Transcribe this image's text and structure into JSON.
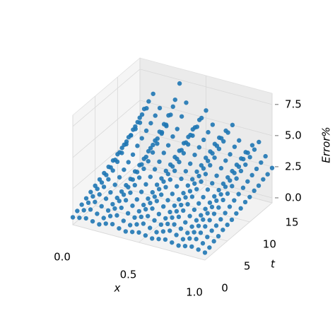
{
  "chart_data": {
    "type": "scatter3d",
    "xlabel": "x",
    "ylabel": "t",
    "zlabel": "Error%",
    "color": "#1f77b4",
    "grid": true,
    "xlim": [
      0,
      1
    ],
    "ylim": [
      0,
      15
    ],
    "zlim": [
      -0.4,
      8.4
    ],
    "xticks": [
      {
        "value": 0,
        "label": "0.0"
      },
      {
        "value": 0.5,
        "label": "0.5"
      },
      {
        "value": 1,
        "label": "1.0"
      }
    ],
    "yticks": [
      0,
      5,
      10,
      15
    ],
    "zticks": [
      {
        "value": 0,
        "label": "0.0"
      },
      {
        "value": 2.5,
        "label": "2.5"
      },
      {
        "value": 5,
        "label": "5.0"
      },
      {
        "value": 7.5,
        "label": "7.5"
      }
    ],
    "x": [
      0,
      0.05,
      0.1,
      0.15,
      0.2,
      0.25,
      0.3,
      0.35,
      0.4,
      0.45,
      0.5,
      0.55,
      0.6,
      0.65,
      0.7,
      0.75,
      0.8,
      0.85,
      0.9,
      0.95,
      1
    ],
    "t": [
      0,
      1,
      2,
      3,
      4,
      5,
      6,
      7,
      8,
      9,
      10,
      11,
      12,
      13,
      14,
      15
    ],
    "values": [
      [
        0.2,
        0.3,
        0.4,
        0.3,
        0.2,
        0.4,
        0.5,
        0.3,
        0.2,
        0.3,
        0.4,
        0.3,
        0.2,
        0.3,
        0.4,
        0.3,
        0.2,
        0.3,
        0.4,
        0.3,
        0.2
      ],
      [
        0.4,
        0.6,
        0.8,
        0.6,
        0.4,
        0.7,
        0.9,
        0.6,
        0.4,
        0.6,
        0.8,
        0.6,
        0.4,
        0.6,
        0.8,
        0.6,
        0.4,
        0.6,
        0.7,
        0.5,
        0.3
      ],
      [
        0.6,
        0.9,
        1.1,
        0.9,
        0.7,
        1.0,
        1.2,
        0.9,
        0.7,
        0.9,
        1.1,
        0.9,
        0.7,
        0.9,
        1.0,
        0.8,
        0.6,
        0.8,
        0.9,
        0.7,
        0.5
      ],
      [
        0.8,
        1.1,
        1.4,
        1.2,
        0.9,
        1.3,
        1.5,
        1.2,
        0.9,
        1.2,
        1.4,
        1.1,
        0.9,
        1.1,
        1.3,
        1.0,
        0.8,
        1.0,
        1.1,
        0.9,
        0.6
      ],
      [
        1.0,
        1.4,
        1.7,
        1.4,
        1.1,
        1.5,
        1.8,
        1.4,
        1.1,
        1.4,
        1.7,
        1.4,
        1.1,
        1.3,
        1.5,
        1.2,
        1.0,
        1.2,
        1.3,
        1.0,
        0.8
      ],
      [
        1.2,
        1.6,
        2.0,
        1.7,
        1.3,
        1.8,
        2.1,
        1.7,
        1.3,
        1.6,
        1.9,
        1.6,
        1.3,
        1.5,
        1.7,
        1.4,
        1.1,
        1.4,
        1.5,
        1.2,
        0.9
      ],
      [
        1.4,
        1.9,
        2.4,
        2.0,
        1.5,
        2.1,
        2.4,
        2.0,
        1.5,
        1.9,
        2.2,
        1.8,
        1.5,
        1.8,
        2.0,
        1.6,
        1.3,
        1.6,
        1.7,
        1.4,
        1.0
      ],
      [
        1.6,
        2.2,
        2.8,
        2.3,
        1.7,
        2.4,
        2.8,
        2.3,
        1.8,
        2.2,
        2.5,
        2.1,
        1.7,
        2.0,
        2.3,
        1.8,
        1.5,
        1.8,
        2.0,
        1.6,
        1.2
      ],
      [
        1.8,
        2.5,
        3.2,
        2.6,
        2.0,
        2.7,
        3.1,
        2.6,
        2.0,
        2.5,
        2.9,
        2.4,
        2.0,
        2.3,
        2.6,
        2.1,
        1.7,
        2.0,
        2.2,
        1.8,
        1.3
      ],
      [
        2.0,
        2.8,
        3.6,
        2.9,
        2.2,
        3.0,
        3.5,
        2.9,
        2.3,
        2.8,
        3.3,
        2.7,
        2.2,
        2.6,
        2.9,
        2.3,
        1.9,
        2.3,
        2.5,
        2.0,
        1.5
      ],
      [
        2.2,
        3.1,
        4.0,
        3.3,
        2.4,
        3.4,
        3.9,
        3.3,
        2.5,
        3.1,
        3.7,
        3.0,
        2.5,
        2.9,
        3.3,
        2.6,
        2.1,
        2.5,
        2.8,
        2.2,
        1.6
      ],
      [
        2.4,
        3.4,
        4.4,
        3.6,
        2.7,
        3.7,
        4.4,
        3.6,
        2.8,
        3.5,
        4.1,
        3.4,
        2.7,
        3.2,
        3.6,
        2.9,
        2.3,
        2.8,
        3.1,
        2.4,
        1.8
      ],
      [
        2.6,
        3.7,
        4.8,
        3.9,
        2.9,
        4.1,
        4.8,
        4.0,
        3.0,
        3.8,
        4.5,
        3.7,
        3.0,
        3.5,
        4.0,
        3.2,
        2.5,
        3.0,
        3.3,
        2.6,
        1.9
      ],
      [
        2.8,
        4.0,
        5.2,
        4.2,
        3.1,
        4.4,
        5.3,
        4.3,
        3.3,
        4.1,
        4.9,
        4.0,
        3.2,
        3.8,
        4.3,
        3.4,
        2.7,
        3.3,
        3.6,
        2.8,
        2.1
      ],
      [
        3.0,
        4.3,
        5.5,
        4.5,
        3.3,
        4.8,
        6.2,
        5.0,
        3.5,
        4.4,
        5.3,
        4.3,
        3.5,
        4.1,
        4.7,
        3.7,
        2.9,
        3.5,
        3.9,
        3.0,
        2.2
      ],
      [
        3.2,
        4.5,
        5.8,
        4.8,
        3.5,
        5.2,
        7.2,
        5.8,
        3.8,
        4.7,
        5.6,
        4.6,
        3.7,
        4.4,
        5.0,
        3.9,
        3.1,
        3.8,
        4.2,
        3.2,
        2.4
      ]
    ]
  }
}
